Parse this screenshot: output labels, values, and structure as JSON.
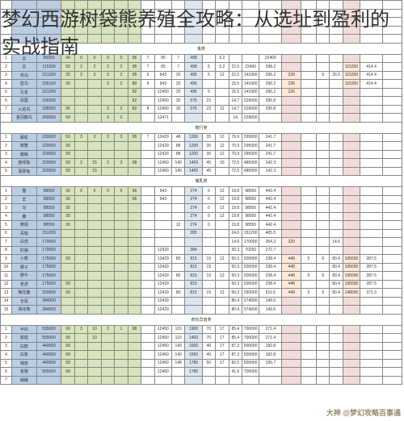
{
  "title": "梦幻西游树袋熊养殖全攻略：从选址到盈利的实战指南",
  "watermark": "大神 @梦幻攻略百事通",
  "colors": {
    "blue": "#b9cde5",
    "green": "#d7e4bc",
    "pink": "#f2dcdb",
    "lblue": "#dce6f1",
    "orange": "#fde9d9",
    "border": "#888888"
  },
  "sections": [
    {
      "name": "禽类",
      "rows": [
        [
          "1",
          "云",
          "85000",
          "40",
          "0",
          "0",
          "0",
          "0",
          "95",
          "7",
          "95",
          "7",
          "498",
          "",
          "5.2",
          "",
          "",
          "22400",
          "",
          "",
          "",
          "",
          "",
          ""
        ],
        [
          "2",
          "云",
          "115200",
          "50",
          "2",
          "2",
          "2",
          "2",
          "95",
          "7",
          "95",
          "7",
          "498",
          "5",
          "5.2",
          "22.5",
          "22400",
          "298.2",
          "",
          "",
          "",
          "",
          "115200",
          "414.4"
        ],
        [
          "3",
          "鸡乌",
          "151200",
          "25",
          "2",
          "3",
          "3",
          "2",
          "95",
          "6",
          "943",
          "20",
          "495",
          "5",
          "12",
          "22.5",
          "141900",
          "296.2",
          "226",
          "",
          "9",
          "26.5",
          "115200",
          "414.4"
        ],
        [
          "4",
          "蓝鸟",
          "155100",
          "30",
          "",
          "",
          "3",
          "2",
          "80",
          "6",
          "943",
          "20",
          "495",
          "",
          "",
          "15.5",
          "141900",
          "296.2",
          "226",
          "",
          "",
          "",
          "115200",
          "414.4"
        ],
        [
          "5",
          "孔雀",
          "151200",
          "",
          "",
          "",
          "",
          "",
          "82",
          "",
          "12450",
          "20",
          "495",
          "5",
          "",
          "15.5",
          "141900",
          "296.2",
          "226",
          "",
          "",
          "",
          "",
          ""
        ],
        [
          "6",
          "凤凰",
          "155200",
          "",
          "",
          "",
          "",
          "",
          "82",
          "",
          "12450",
          "30",
          "576",
          "22",
          "",
          "14.7",
          "229000",
          "295.8",
          "",
          "",
          "",
          "",
          "",
          ""
        ],
        [
          "7",
          "火焰鸟",
          "185000",
          "95",
          "",
          "",
          "3",
          "2",
          "82",
          "8",
          "12450",
          "30",
          "576",
          "22",
          "12",
          "14.7",
          "229000",
          "295.8",
          "",
          "",
          "",
          "",
          "",
          ""
        ],
        [
          "",
          "金羽鹏鸟",
          "200000",
          "59",
          "",
          "",
          "3",
          "2",
          "",
          "",
          "12471",
          "",
          "",
          "",
          "",
          "14",
          "229000",
          "",
          "",
          "",
          "",
          "",
          "",
          ""
        ]
      ]
    },
    {
      "name": "爬行类",
      "rows": [
        [
          "1",
          "蟒蛇",
          "220000",
          "59",
          "3",
          "3",
          "3",
          "3",
          "95",
          "7",
          "12429",
          "48",
          "1200",
          "35",
          "12",
          "70.9",
          "295000",
          "241.7",
          "",
          "",
          "",
          "",
          "",
          ""
        ],
        [
          "2",
          "螃蟹",
          "220000",
          "99",
          "",
          "",
          "",
          "",
          "",
          "",
          "12429",
          "88",
          "1200",
          "35",
          "12",
          "70.9",
          "295000",
          "241.7",
          "",
          "",
          "",
          "",
          "",
          ""
        ],
        [
          "3",
          "蟾蜍",
          "220000",
          "99",
          "",
          "",
          "",
          "",
          "",
          "",
          "12429",
          "88",
          "1200",
          "35",
          "12",
          "70.9",
          "295000",
          "241.7",
          "",
          "",
          "",
          "",
          "",
          ""
        ],
        [
          "4",
          "盘绿龟",
          "220000",
          "99",
          "3",
          "15",
          "3",
          "3",
          "98",
          "",
          "12450",
          "140",
          "1400",
          "45",
          "10",
          "72.5",
          "485000",
          "142.3",
          "",
          "",
          "",
          "",
          "",
          ""
        ],
        [
          "5",
          "翡翠龟",
          "220000",
          "99",
          "",
          "15",
          "",
          "",
          "",
          "",
          "12450",
          "140",
          "1400",
          "45",
          "",
          "72.5",
          "485000",
          "142.3",
          "",
          "",
          "",
          "",
          "",
          ""
        ]
      ]
    },
    {
      "name": "哺乳类",
      "rows": [
        [
          "1",
          "猫",
          "98550",
          "30",
          "0",
          "0",
          "0",
          "0",
          "96",
          "",
          "943",
          "",
          "274",
          "0",
          "12",
          "19.8",
          "98550",
          "442.4",
          "",
          "",
          "",
          "",
          "",
          ""
        ],
        [
          "2",
          "羊",
          "98550",
          "30",
          "",
          "",
          "",
          "",
          "96",
          "",
          "943",
          "",
          "274",
          "0",
          "12",
          "19.8",
          "98550",
          "442.4",
          "",
          "",
          "",
          "",
          "",
          ""
        ],
        [
          "3",
          "马",
          "98550",
          "30",
          "",
          "",
          "",
          "",
          "",
          "",
          "",
          "",
          "274",
          "0",
          "12",
          "19.8",
          "98550",
          "442.4",
          "",
          "",
          "",
          "",
          "",
          ""
        ],
        [
          "4",
          "鹿",
          "98550",
          "30",
          "",
          "",
          "",
          "",
          "",
          "",
          "",
          "",
          "274",
          "0",
          "12",
          "19.8",
          "98550",
          "442.4",
          "",
          "",
          "",
          "",
          "",
          ""
        ],
        [
          "5",
          "黄貂",
          "98550",
          "30",
          "",
          "",
          "",
          "",
          "",
          "",
          "",
          "12",
          "274",
          "0",
          "",
          "19.8",
          "98550",
          "442.4",
          "",
          "",
          "",
          "",
          "",
          ""
        ],
        [
          "6",
          "青蛙",
          "151200",
          "",
          "",
          "",
          "",
          "",
          "",
          "",
          "",
          "",
          "285",
          "",
          "",
          "24.6",
          "151200",
          "405.5",
          "",
          "",
          "",
          "",
          "",
          ""
        ],
        [
          "7",
          "白虎",
          "170000",
          "",
          "",
          "",
          "",
          "",
          "",
          "",
          "",
          "",
          "",
          "",
          "",
          "14.6",
          "170000",
          "354.3",
          "220",
          "",
          "",
          "14.6",
          "",
          ""
        ],
        [
          "8",
          "豹狼",
          "170000",
          "",
          "",
          "",
          "",
          "",
          "",
          "",
          "12429",
          "",
          "384",
          "",
          "",
          "30.3",
          "70250",
          "272.7",
          "",
          "",
          "",
          "",
          "",
          ""
        ],
        [
          "9",
          "小熊",
          "175000",
          "99",
          "",
          "",
          "",
          "",
          "",
          "",
          "12429",
          "80",
          "815",
          "15",
          "12",
          "50.3",
          "200000",
          "238.4",
          "448",
          "5",
          "9",
          "80.4",
          "195000",
          "287.5"
        ],
        [
          "10",
          "狮子",
          "175000",
          "",
          "",
          "",
          "",
          "",
          "",
          "",
          "12429",
          "",
          "815",
          "15",
          "",
          "50.3",
          "200000",
          "238.4",
          "448",
          "",
          "",
          "80.4",
          "195000",
          "287.5"
        ],
        [
          "11",
          "野牛",
          "175000",
          "",
          "",
          "",
          "",
          "",
          "",
          "",
          "12429",
          "80",
          "815",
          "15",
          "12",
          "50.3",
          "200000",
          "238.4",
          "448",
          "5",
          "9",
          "80.4",
          "195000",
          "287.5"
        ],
        [
          "12",
          "老虎",
          "175000",
          "99",
          "",
          "",
          "",
          "",
          "",
          "",
          "12429",
          "",
          "815",
          "",
          "",
          "50.3",
          "200000",
          "238.4",
          "448",
          "",
          "",
          "80.4",
          "195000",
          "287.5"
        ],
        [
          "13",
          "梅花鹿",
          "220000",
          "99",
          "",
          "",
          "",
          "",
          "",
          "",
          "12429",
          "80",
          "815",
          "15",
          "12",
          "50.3",
          "260000",
          "611.5",
          "448",
          "5",
          "9",
          "80.4",
          "148000",
          "371.3"
        ],
        [
          "14",
          "仓鼠",
          "284000",
          "",
          "",
          "",
          "",
          "",
          "",
          "",
          "12429",
          "",
          "",
          "",
          "",
          "80.4",
          "374000",
          "149.5",
          "",
          "",
          "",
          "",
          "",
          ""
        ],
        [
          "15",
          "滑冰熊",
          "284000",
          "",
          "",
          "",
          "",
          "",
          "",
          "",
          "12429",
          "",
          "",
          "",
          "",
          "80.4",
          "374000",
          "149.5",
          "",
          "",
          "",
          "",
          "",
          ""
        ]
      ]
    },
    {
      "name": "奇珍异兽类",
      "rows": [
        [
          "1",
          "半匹",
          "555000",
          "99",
          "3",
          "10",
          "2",
          "1",
          "98",
          "",
          "12450",
          "110",
          "1900",
          "70",
          "17",
          "85.4",
          "700000",
          "271.4",
          "",
          "",
          "",
          "",
          "",
          ""
        ],
        [
          "2",
          "蚌蛙",
          "555000",
          "99",
          "",
          "10",
          "",
          "",
          "",
          "",
          "12450",
          "110",
          "1400",
          "70",
          "17",
          "85.4",
          "700000",
          "271.4",
          "",
          "",
          "",
          "",
          "",
          ""
        ],
        [
          "3",
          "白鹤",
          "440000",
          "99",
          "",
          "",
          "",
          "",
          "",
          "",
          "12450",
          "140",
          "1600",
          "40",
          "17",
          "87.3",
          "500000",
          "182.8",
          "",
          "",
          "",
          "",
          "",
          ""
        ],
        [
          "4",
          "白象",
          "440000",
          "99",
          "",
          "",
          "",
          "",
          "",
          "",
          "12450",
          "140",
          "1600",
          "40",
          "17",
          "87.3",
          "500000",
          "182.8",
          "",
          "",
          "",
          "",
          "",
          ""
        ],
        [
          "5",
          "瑞兽",
          "440000",
          "99",
          "",
          "",
          "",
          "",
          "",
          "",
          "12450",
          "148",
          "1780",
          "50",
          "17",
          "82.5",
          "500000",
          "195.7",
          "",
          "",
          "",
          "",
          "",
          ""
        ],
        [
          "6",
          "金猴",
          "555000",
          "99",
          "",
          "",
          "",
          "",
          "",
          "",
          "12450",
          "",
          "1780",
          "",
          "",
          "41.6",
          "700000",
          "",
          "",
          "",
          "",
          "",
          "",
          ""
        ],
        [
          "7",
          "蝴蝶",
          "",
          "",
          "",
          "",
          "",
          "",
          "",
          "",
          "",
          "",
          "",
          "",
          "",
          "",
          "",
          "",
          "",
          "",
          "",
          "",
          "",
          ""
        ]
      ]
    }
  ]
}
